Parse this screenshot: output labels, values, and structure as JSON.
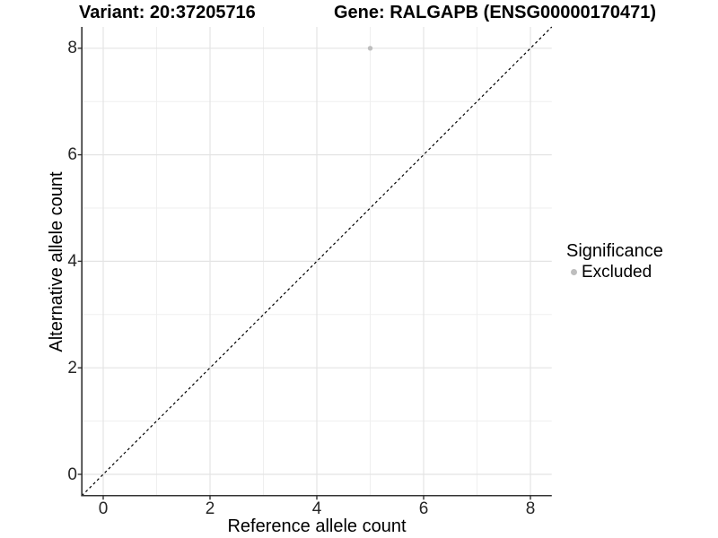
{
  "title": {
    "variant": "Variant: 20:37205716",
    "gene": "Gene: RALGAPB (ENSG00000170471)"
  },
  "chart_data": {
    "type": "scatter",
    "title": "Variant: 20:37205716    Gene: RALGAPB (ENSG00000170471)",
    "xlabel": "Reference allele count",
    "ylabel": "Alternative allele count",
    "x_ticks": [
      0,
      2,
      4,
      6,
      8
    ],
    "y_ticks": [
      0,
      2,
      4,
      6,
      8
    ],
    "xlim": [
      -0.4,
      8.4
    ],
    "ylim": [
      -0.4,
      8.4
    ],
    "grid": "major gridlines at even values, minor gridlines at odd values, white panel background",
    "points": [
      {
        "x": 5,
        "y": 8,
        "series": "Excluded"
      }
    ],
    "reference_line": {
      "kind": "identity y=x",
      "style": "dashed",
      "from": [
        -0.4,
        -0.4
      ],
      "to": [
        8.4,
        8.4
      ]
    },
    "legend": {
      "title": "Significance",
      "position": "right",
      "entries": [
        {
          "label": "Excluded",
          "color": "#bebebe"
        }
      ]
    },
    "colors": {
      "point": "#bebebe",
      "dashed_line": "#000000",
      "axis_line": "#333333",
      "tick_mark": "#333333",
      "grid_major": "#e4e4e4",
      "grid_minor": "#efefef",
      "tick_text": "#262626",
      "background": "#ffffff"
    }
  }
}
